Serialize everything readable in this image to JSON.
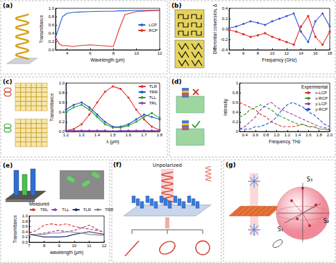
{
  "chart_data": [
    {
      "panel": "(a)",
      "type": "line",
      "xlabel": "Wavelength (μm)",
      "ylabel": "Transmittance",
      "x": [
        3,
        3.3,
        3.6,
        4,
        4.5,
        5,
        6,
        7,
        8,
        8.5,
        9,
        10,
        11,
        12
      ],
      "series": [
        {
          "name": "LCP",
          "color": "#1f5fd6",
          "values": [
            0.3,
            0.55,
            0.8,
            0.88,
            0.9,
            0.91,
            0.92,
            0.93,
            0.93,
            0.94,
            0.94,
            0.95,
            0.95,
            0.95
          ]
        },
        {
          "name": "RCP",
          "color": "#e0302a",
          "values": [
            0.3,
            0.15,
            0.1,
            0.1,
            0.08,
            0.1,
            0.12,
            0.1,
            0.08,
            0.5,
            0.85,
            0.92,
            0.94,
            0.95
          ]
        }
      ],
      "xlim": [
        3,
        12
      ],
      "xticks": [
        4,
        6,
        8,
        10,
        12
      ],
      "ylim": [
        0,
        1
      ],
      "yticks": [
        {
          "value": 0,
          "label": "0.0"
        },
        0.2,
        0.4,
        0.6,
        0.8,
        {
          "value": 1,
          "label": "1.0"
        }
      ],
      "legend": "center right"
    },
    {
      "panel": "(b)",
      "type": "line",
      "xlabel": "Frequency (GHz)",
      "ylabel": "Differential conversion, Δ",
      "x": [
        4,
        5,
        6,
        7,
        8,
        9,
        10,
        11,
        12,
        13,
        14,
        15,
        16,
        17,
        18
      ],
      "series": [
        {
          "color": "#3050d0",
          "marker": "circle",
          "values": [
            0.02,
            0.05,
            0.1,
            0.15,
            0.12,
            0.08,
            0.15,
            0.2,
            0.25,
            0.3,
            -0.05,
            -0.25,
            0.15,
            0.3,
            0.05
          ]
        },
        {
          "color": "#e0302a",
          "marker": "rect",
          "values": [
            -0.02,
            -0.05,
            -0.1,
            -0.15,
            -0.12,
            -0.08,
            -0.15,
            -0.2,
            -0.25,
            -0.3,
            0.05,
            0.25,
            -0.15,
            -0.3,
            -0.05
          ]
        }
      ],
      "xlim": [
        4,
        18
      ],
      "xticks": [
        4,
        6,
        8,
        10,
        12,
        14,
        16,
        18
      ],
      "ylim": [
        -0.4,
        0.4
      ],
      "yticks": [
        -0.4,
        -0.2,
        {
          "value": 0,
          "label": "0.0"
        },
        0.2,
        0.4
      ]
    },
    {
      "panel": "(c)",
      "type": "line",
      "xlabel": "λ (μm)",
      "ylabel": "Transmittance",
      "x": [
        1.2,
        1.25,
        1.3,
        1.35,
        1.4,
        1.45,
        1.5,
        1.55,
        1.6,
        1.65,
        1.7,
        1.75,
        1.8
      ],
      "series": [
        {
          "name": "TLR",
          "color": "#e0302a",
          "marker": "circle",
          "values": [
            0.02,
            0.05,
            0.15,
            0.35,
            0.6,
            0.82,
            0.93,
            0.88,
            0.7,
            0.45,
            0.25,
            0.1,
            0.03
          ]
        },
        {
          "name": "TRR",
          "color": "#2050c8",
          "marker": "circle",
          "values": [
            0.45,
            0.55,
            0.6,
            0.5,
            0.35,
            0.2,
            0.1,
            0.1,
            0.15,
            0.25,
            0.35,
            0.3,
            0.25
          ]
        },
        {
          "name": "TLL",
          "color": "#2ca02c",
          "marker": "circle",
          "values": [
            0.4,
            0.5,
            0.55,
            0.45,
            0.3,
            0.15,
            0.08,
            0.08,
            0.12,
            0.2,
            0.3,
            0.38,
            0.28
          ]
        },
        {
          "name": "TRL",
          "color": "#8e44ad",
          "marker": "circle",
          "values": [
            0.02,
            0.02,
            0.02,
            0.02,
            0.02,
            0.02,
            0.01,
            0.02,
            0.02,
            0.02,
            0.02,
            0.02,
            0.02
          ]
        }
      ],
      "xlim": [
        1.2,
        1.8
      ],
      "xticks": [
        1.2,
        1.3,
        1.4,
        1.5,
        1.6,
        1.7,
        1.8
      ],
      "ylim": [
        0,
        1
      ],
      "yticks": [
        {
          "value": 0,
          "label": "0.0"
        },
        0.2,
        0.4,
        0.6,
        0.8,
        {
          "value": 1,
          "label": "1.0"
        }
      ],
      "legend": "upper right"
    },
    {
      "panel": "(d)",
      "type": "line",
      "xlabel": "Frequency, THz",
      "ylabel": "Intensity",
      "annotation": "Experimental",
      "x": [
        0.3,
        0.4,
        0.5,
        0.6,
        0.7,
        0.8,
        0.9,
        1.0,
        1.1,
        1.2,
        1.3,
        1.4,
        1.5,
        1.6,
        1.7,
        1.8,
        1.9,
        2.0
      ],
      "series": [
        {
          "name": "x-LCP",
          "color": "#e0302a",
          "line_style": "dashed",
          "values": [
            0.6,
            0.55,
            0.5,
            0.45,
            0.35,
            0.3,
            0.2,
            0.15,
            0.1,
            0.1,
            0.1,
            0.12,
            0.15,
            0.1,
            0.1,
            0.05,
            0.05,
            0.03
          ]
        },
        {
          "name": "x-RCP",
          "color": "#2ca02c",
          "line_style": "dashed",
          "values": [
            0.3,
            0.35,
            0.45,
            0.5,
            0.55,
            0.5,
            0.45,
            0.35,
            0.3,
            0.25,
            0.2,
            0.15,
            0.15,
            0.1,
            0.1,
            0.05,
            0.05,
            0.03
          ]
        },
        {
          "name": "y-LCP",
          "color": "#8e44ad",
          "line_style": "dashed",
          "values": [
            0.05,
            0.1,
            0.2,
            0.3,
            0.45,
            0.55,
            0.6,
            0.5,
            0.45,
            0.4,
            0.35,
            0.3,
            0.25,
            0.2,
            0.15,
            0.1,
            0.08,
            0.05
          ]
        },
        {
          "name": "y-RCP",
          "color": "#2050c8",
          "line_style": "dashed",
          "values": [
            0.05,
            0.05,
            0.05,
            0.1,
            0.1,
            0.15,
            0.2,
            0.3,
            0.45,
            0.55,
            0.6,
            0.55,
            0.5,
            0.4,
            0.35,
            0.25,
            0.15,
            0.1
          ]
        }
      ],
      "xlim": [
        0.3,
        2.0
      ],
      "xticks": [
        0.4,
        0.6,
        0.8,
        {
          "value": 1,
          "label": "1.0"
        },
        1.2,
        1.4,
        1.6,
        1.8,
        {
          "value": 2,
          "label": "2.0"
        }
      ],
      "ylim": [
        0,
        1
      ],
      "yticks": [
        0,
        0.2,
        0.4,
        0.6,
        0.8,
        1
      ],
      "legend": "upper right"
    },
    {
      "panel": "(e)",
      "type": "line",
      "xlabel": "wavelength (μm)",
      "ylabel": "Transmittance",
      "annotation": "Measured",
      "x": [
        7,
        7.5,
        8,
        8.5,
        9,
        9.5,
        10,
        10.5,
        11,
        11.5,
        12
      ],
      "series": [
        {
          "name": "TRL",
          "color": "#e0302a",
          "line_style": "dashed",
          "values": [
            0.35,
            0.45,
            0.65,
            0.7,
            0.65,
            0.7,
            0.6,
            0.55,
            0.5,
            0.45,
            0.4
          ]
        },
        {
          "name": "TLL",
          "color": "#8e44ad",
          "line_style": "dashed",
          "values": [
            0.3,
            0.3,
            0.35,
            0.4,
            0.45,
            0.4,
            0.45,
            0.55,
            0.65,
            0.5,
            0.35
          ]
        },
        {
          "name": "TLR",
          "color": "#1a2a6c",
          "line_style": "solid",
          "values": [
            0.3,
            0.25,
            0.2,
            0.2,
            0.2,
            0.22,
            0.3,
            0.35,
            0.4,
            0.35,
            0.3
          ]
        },
        {
          "name": "TRR",
          "color": "#888888",
          "line_style": "solid",
          "values": [
            0.3,
            0.3,
            0.3,
            0.35,
            0.35,
            0.4,
            0.38,
            0.35,
            0.3,
            0.28,
            0.25
          ]
        }
      ],
      "xlim": [
        7,
        12
      ],
      "xticks": [
        7,
        8,
        9,
        10,
        11,
        12
      ],
      "ylim": [
        0,
        1
      ],
      "yticks": [
        {
          "value": 0,
          "label": "0.0"
        },
        0.2,
        0.4,
        0.6,
        0.8,
        {
          "value": 1,
          "label": "1.0"
        }
      ],
      "legend": "top"
    }
  ],
  "diagrams": {
    "f": {
      "panel": "(f)",
      "label": "Unpolarized"
    },
    "g": {
      "panel": "(g)",
      "axes": [
        "S₁",
        "S₂",
        "S₃"
      ]
    }
  }
}
